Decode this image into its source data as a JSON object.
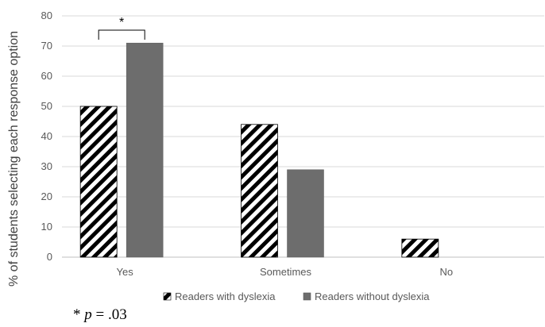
{
  "chart_data": {
    "type": "bar",
    "ylabel": "% of students selecting each response option",
    "xlabel": "",
    "ylim": [
      0,
      80
    ],
    "yticks": [
      0,
      10,
      20,
      30,
      40,
      50,
      60,
      70,
      80
    ],
    "categories": [
      "Yes",
      "Sometimes",
      "No"
    ],
    "series": [
      {
        "name": "Readers with dyslexia",
        "values": [
          50,
          44,
          6
        ],
        "fill": "hatched black/white diagonal",
        "color": "#000000"
      },
      {
        "name": "Readers without dyslexia",
        "values": [
          71,
          29,
          0
        ],
        "fill": "solid",
        "color": "#6d6d6d"
      }
    ],
    "grid": true,
    "legend": "bottom",
    "annotations": [
      {
        "text": "*",
        "type": "significance-bracket",
        "category": "Yes"
      }
    ],
    "footnote": "* p = .03"
  }
}
